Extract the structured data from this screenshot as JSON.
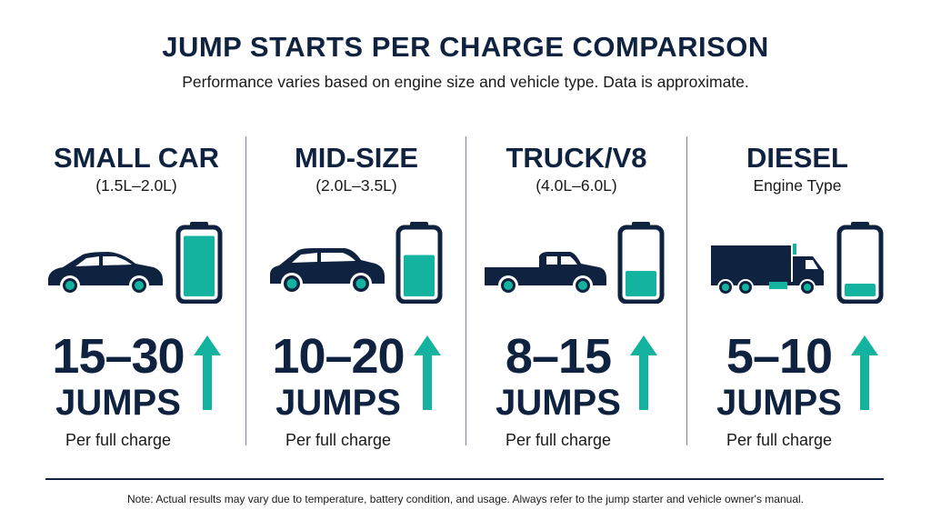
{
  "title": "JUMP STARTS PER CHARGE COMPARISON",
  "subtitle": "Performance varies based on engine size and vehicle type. Data is approximate.",
  "colors": {
    "navy": "#0f2340",
    "teal": "#14b3a0"
  },
  "columns": [
    {
      "name": "SMALL CAR",
      "sub": "(1.5L–2.0L)",
      "icon": "sedan-icon",
      "battery_level": 0.95,
      "range": "15–30",
      "unit": "JUMPS",
      "note": "Per full charge"
    },
    {
      "name": "MID-SIZE",
      "sub": "(2.0L–3.5L)",
      "icon": "suv-icon",
      "battery_level": 0.65,
      "range": "10–20",
      "unit": "JUMPS",
      "note": "Per full charge"
    },
    {
      "name": "TRUCK/V8",
      "sub": "(4.0L–6.0L)",
      "icon": "pickup-truck-icon",
      "battery_level": 0.4,
      "range": "8–15",
      "unit": "JUMPS",
      "note": "Per full charge"
    },
    {
      "name": "DIESEL",
      "sub": "Engine Type",
      "icon": "box-truck-icon",
      "battery_level": 0.2,
      "range": "5–10",
      "unit": "JUMPS",
      "note": "Per full charge"
    }
  ],
  "footer_note": "Note: Actual results may vary due to temperature, battery condition, and usage. Always refer to the jump starter and vehicle owner's manual."
}
